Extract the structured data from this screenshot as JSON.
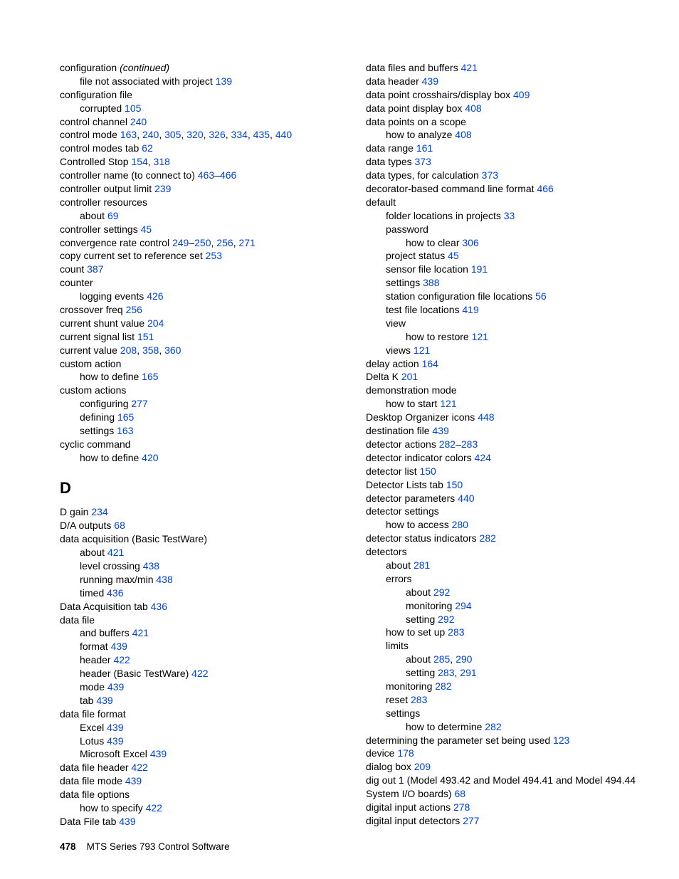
{
  "link_color": "#0042d8",
  "font_family": "Arial, Helvetica, sans-serif",
  "body_font_size_pt": 10,
  "heading_font_size_pt": 16,
  "footer": {
    "page_number": "478",
    "title": "MTS Series 793 Control Software"
  },
  "section_heading": {
    "letter": "D"
  },
  "col_left_a": [
    {
      "lvl": 0,
      "segs": [
        {
          "t": "configuration "
        },
        {
          "t": "(continued)",
          "italic": true
        }
      ]
    },
    {
      "lvl": 1,
      "segs": [
        {
          "t": "file not associated with project "
        },
        {
          "t": "139",
          "link": true
        }
      ]
    },
    {
      "lvl": 0,
      "segs": [
        {
          "t": "configuration file"
        }
      ]
    },
    {
      "lvl": 1,
      "segs": [
        {
          "t": "corrupted "
        },
        {
          "t": "105",
          "link": true
        }
      ]
    },
    {
      "lvl": 0,
      "segs": [
        {
          "t": "control channel "
        },
        {
          "t": "240",
          "link": true
        }
      ]
    },
    {
      "lvl": 0,
      "segs": [
        {
          "t": "control mode "
        },
        {
          "t": "163",
          "link": true
        },
        {
          "t": ", "
        },
        {
          "t": "240",
          "link": true
        },
        {
          "t": ", "
        },
        {
          "t": "305",
          "link": true
        },
        {
          "t": ", "
        },
        {
          "t": "320",
          "link": true
        },
        {
          "t": ", "
        },
        {
          "t": "326",
          "link": true
        },
        {
          "t": ", "
        },
        {
          "t": "334",
          "link": true
        },
        {
          "t": ", "
        },
        {
          "t": "435",
          "link": true
        },
        {
          "t": ", "
        },
        {
          "t": "440",
          "link": true
        }
      ]
    },
    {
      "lvl": 0,
      "segs": [
        {
          "t": "control modes tab "
        },
        {
          "t": "62",
          "link": true
        }
      ]
    },
    {
      "lvl": 0,
      "segs": [
        {
          "t": "Controlled Stop "
        },
        {
          "t": "154",
          "link": true
        },
        {
          "t": ", "
        },
        {
          "t": "318",
          "link": true
        }
      ]
    },
    {
      "lvl": 0,
      "segs": [
        {
          "t": "controller name (to connect to) "
        },
        {
          "t": "463",
          "link": true
        },
        {
          "t": "–"
        },
        {
          "t": "466",
          "link": true
        }
      ]
    },
    {
      "lvl": 0,
      "segs": [
        {
          "t": "controller output limit "
        },
        {
          "t": "239",
          "link": true
        }
      ]
    },
    {
      "lvl": 0,
      "segs": [
        {
          "t": "controller resources"
        }
      ]
    },
    {
      "lvl": 1,
      "segs": [
        {
          "t": "about "
        },
        {
          "t": "69",
          "link": true
        }
      ]
    },
    {
      "lvl": 0,
      "segs": [
        {
          "t": "controller settings "
        },
        {
          "t": "45",
          "link": true
        }
      ]
    },
    {
      "lvl": 0,
      "segs": [
        {
          "t": "convergence rate control "
        },
        {
          "t": "249",
          "link": true
        },
        {
          "t": "–"
        },
        {
          "t": "250",
          "link": true
        },
        {
          "t": ", "
        },
        {
          "t": "256",
          "link": true
        },
        {
          "t": ", "
        },
        {
          "t": "271",
          "link": true
        }
      ]
    },
    {
      "lvl": 0,
      "segs": [
        {
          "t": "copy current set to reference set "
        },
        {
          "t": "253",
          "link": true
        }
      ]
    },
    {
      "lvl": 0,
      "segs": [
        {
          "t": "count "
        },
        {
          "t": "387",
          "link": true
        }
      ]
    },
    {
      "lvl": 0,
      "segs": [
        {
          "t": "counter"
        }
      ]
    },
    {
      "lvl": 1,
      "segs": [
        {
          "t": "logging events "
        },
        {
          "t": "426",
          "link": true
        }
      ]
    },
    {
      "lvl": 0,
      "segs": [
        {
          "t": "crossover freq "
        },
        {
          "t": "256",
          "link": true
        }
      ]
    },
    {
      "lvl": 0,
      "segs": [
        {
          "t": "current shunt value "
        },
        {
          "t": "204",
          "link": true
        }
      ]
    },
    {
      "lvl": 0,
      "segs": [
        {
          "t": "current signal list "
        },
        {
          "t": "151",
          "link": true
        }
      ]
    },
    {
      "lvl": 0,
      "segs": [
        {
          "t": "current value "
        },
        {
          "t": "208",
          "link": true
        },
        {
          "t": ", "
        },
        {
          "t": "358",
          "link": true
        },
        {
          "t": ", "
        },
        {
          "t": "360",
          "link": true
        }
      ]
    },
    {
      "lvl": 0,
      "segs": [
        {
          "t": "custom action"
        }
      ]
    },
    {
      "lvl": 1,
      "segs": [
        {
          "t": "how to define "
        },
        {
          "t": "165",
          "link": true
        }
      ]
    },
    {
      "lvl": 0,
      "segs": [
        {
          "t": "custom actions"
        }
      ]
    },
    {
      "lvl": 1,
      "segs": [
        {
          "t": "configuring "
        },
        {
          "t": "277",
          "link": true
        }
      ]
    },
    {
      "lvl": 1,
      "segs": [
        {
          "t": "defining "
        },
        {
          "t": "165",
          "link": true
        }
      ]
    },
    {
      "lvl": 1,
      "segs": [
        {
          "t": "settings "
        },
        {
          "t": "163",
          "link": true
        }
      ]
    },
    {
      "lvl": 0,
      "segs": [
        {
          "t": "cyclic command"
        }
      ]
    },
    {
      "lvl": 1,
      "segs": [
        {
          "t": "how to define "
        },
        {
          "t": "420",
          "link": true
        }
      ]
    }
  ],
  "col_left_b": [
    {
      "lvl": 0,
      "segs": [
        {
          "t": "D gain "
        },
        {
          "t": "234",
          "link": true
        }
      ]
    },
    {
      "lvl": 0,
      "segs": [
        {
          "t": "D/A outputs "
        },
        {
          "t": "68",
          "link": true
        }
      ]
    },
    {
      "lvl": 0,
      "segs": [
        {
          "t": "data acquisition (Basic TestWare)"
        }
      ]
    },
    {
      "lvl": 1,
      "segs": [
        {
          "t": "about "
        },
        {
          "t": "421",
          "link": true
        }
      ]
    },
    {
      "lvl": 1,
      "segs": [
        {
          "t": "level crossing "
        },
        {
          "t": "438",
          "link": true
        }
      ]
    },
    {
      "lvl": 1,
      "segs": [
        {
          "t": "running max/min "
        },
        {
          "t": "438",
          "link": true
        }
      ]
    },
    {
      "lvl": 1,
      "segs": [
        {
          "t": "timed "
        },
        {
          "t": "436",
          "link": true
        }
      ]
    },
    {
      "lvl": 0,
      "segs": [
        {
          "t": "Data Acquisition tab "
        },
        {
          "t": "436",
          "link": true
        }
      ]
    },
    {
      "lvl": 0,
      "segs": [
        {
          "t": "data file"
        }
      ]
    },
    {
      "lvl": 1,
      "segs": [
        {
          "t": "and buffers "
        },
        {
          "t": "421",
          "link": true
        }
      ]
    },
    {
      "lvl": 1,
      "segs": [
        {
          "t": "format "
        },
        {
          "t": "439",
          "link": true
        }
      ]
    },
    {
      "lvl": 1,
      "segs": [
        {
          "t": "header "
        },
        {
          "t": "422",
          "link": true
        }
      ]
    },
    {
      "lvl": 1,
      "segs": [
        {
          "t": "header (Basic TestWare) "
        },
        {
          "t": "422",
          "link": true
        }
      ]
    },
    {
      "lvl": 1,
      "segs": [
        {
          "t": "mode "
        },
        {
          "t": "439",
          "link": true
        }
      ]
    },
    {
      "lvl": 1,
      "segs": [
        {
          "t": "tab "
        },
        {
          "t": "439",
          "link": true
        }
      ]
    },
    {
      "lvl": 0,
      "segs": [
        {
          "t": "data file format"
        }
      ]
    },
    {
      "lvl": 1,
      "segs": [
        {
          "t": "Excel "
        },
        {
          "t": "439",
          "link": true
        }
      ]
    },
    {
      "lvl": 1,
      "segs": [
        {
          "t": "Lotus "
        },
        {
          "t": "439",
          "link": true
        }
      ]
    },
    {
      "lvl": 1,
      "segs": [
        {
          "t": "Microsoft Excel "
        },
        {
          "t": "439",
          "link": true
        }
      ]
    },
    {
      "lvl": 0,
      "segs": [
        {
          "t": "data file header "
        },
        {
          "t": "422",
          "link": true
        }
      ]
    },
    {
      "lvl": 0,
      "segs": [
        {
          "t": "data file mode "
        },
        {
          "t": "439",
          "link": true
        }
      ]
    },
    {
      "lvl": 0,
      "segs": [
        {
          "t": "data file options"
        }
      ]
    },
    {
      "lvl": 1,
      "segs": [
        {
          "t": "how to specify "
        },
        {
          "t": "422",
          "link": true
        }
      ]
    },
    {
      "lvl": 0,
      "segs": [
        {
          "t": "Data File tab "
        },
        {
          "t": "439",
          "link": true
        }
      ]
    }
  ],
  "col_right": [
    {
      "lvl": 0,
      "segs": [
        {
          "t": "data files and buffers "
        },
        {
          "t": "421",
          "link": true
        }
      ]
    },
    {
      "lvl": 0,
      "segs": [
        {
          "t": "data header "
        },
        {
          "t": "439",
          "link": true
        }
      ]
    },
    {
      "lvl": 0,
      "segs": [
        {
          "t": "data point crosshairs/display box "
        },
        {
          "t": "409",
          "link": true
        }
      ]
    },
    {
      "lvl": 0,
      "segs": [
        {
          "t": "data point display box "
        },
        {
          "t": "408",
          "link": true
        }
      ]
    },
    {
      "lvl": 0,
      "segs": [
        {
          "t": "data points on a scope"
        }
      ]
    },
    {
      "lvl": 1,
      "segs": [
        {
          "t": "how to analyze "
        },
        {
          "t": "408",
          "link": true
        }
      ]
    },
    {
      "lvl": 0,
      "segs": [
        {
          "t": "data range "
        },
        {
          "t": "161",
          "link": true
        }
      ]
    },
    {
      "lvl": 0,
      "segs": [
        {
          "t": "data types "
        },
        {
          "t": "373",
          "link": true
        }
      ]
    },
    {
      "lvl": 0,
      "segs": [
        {
          "t": "data types, for calculation "
        },
        {
          "t": "373",
          "link": true
        }
      ]
    },
    {
      "lvl": 0,
      "segs": [
        {
          "t": "decorator-based command line format "
        },
        {
          "t": "466",
          "link": true
        }
      ]
    },
    {
      "lvl": 0,
      "segs": [
        {
          "t": "default"
        }
      ]
    },
    {
      "lvl": 1,
      "segs": [
        {
          "t": "folder locations in projects "
        },
        {
          "t": "33",
          "link": true
        }
      ]
    },
    {
      "lvl": 1,
      "segs": [
        {
          "t": "password"
        }
      ]
    },
    {
      "lvl": 2,
      "segs": [
        {
          "t": "how to clear "
        },
        {
          "t": "306",
          "link": true
        }
      ]
    },
    {
      "lvl": 1,
      "segs": [
        {
          "t": "project status "
        },
        {
          "t": "45",
          "link": true
        }
      ]
    },
    {
      "lvl": 1,
      "segs": [
        {
          "t": "sensor file location "
        },
        {
          "t": "191",
          "link": true
        }
      ]
    },
    {
      "lvl": 1,
      "segs": [
        {
          "t": "settings "
        },
        {
          "t": "388",
          "link": true
        }
      ]
    },
    {
      "lvl": 1,
      "segs": [
        {
          "t": "station configuration file locations "
        },
        {
          "t": "56",
          "link": true
        }
      ]
    },
    {
      "lvl": 1,
      "segs": [
        {
          "t": "test file locations "
        },
        {
          "t": "419",
          "link": true
        }
      ]
    },
    {
      "lvl": 1,
      "segs": [
        {
          "t": "view"
        }
      ]
    },
    {
      "lvl": 2,
      "segs": [
        {
          "t": "how to restore "
        },
        {
          "t": "121",
          "link": true
        }
      ]
    },
    {
      "lvl": 1,
      "segs": [
        {
          "t": "views "
        },
        {
          "t": "121",
          "link": true
        }
      ]
    },
    {
      "lvl": 0,
      "segs": [
        {
          "t": "delay action "
        },
        {
          "t": "164",
          "link": true
        }
      ]
    },
    {
      "lvl": 0,
      "segs": [
        {
          "t": "Delta K "
        },
        {
          "t": "201",
          "link": true
        }
      ]
    },
    {
      "lvl": 0,
      "segs": [
        {
          "t": "demonstration mode"
        }
      ]
    },
    {
      "lvl": 1,
      "segs": [
        {
          "t": "how to start "
        },
        {
          "t": "121",
          "link": true
        }
      ]
    },
    {
      "lvl": 0,
      "segs": [
        {
          "t": "Desktop Organizer icons "
        },
        {
          "t": "448",
          "link": true
        }
      ]
    },
    {
      "lvl": 0,
      "segs": [
        {
          "t": "destination file "
        },
        {
          "t": "439",
          "link": true
        }
      ]
    },
    {
      "lvl": 0,
      "segs": [
        {
          "t": "detector actions "
        },
        {
          "t": "282",
          "link": true
        },
        {
          "t": "–"
        },
        {
          "t": "283",
          "link": true
        }
      ]
    },
    {
      "lvl": 0,
      "segs": [
        {
          "t": "detector indicator colors "
        },
        {
          "t": "424",
          "link": true
        }
      ]
    },
    {
      "lvl": 0,
      "segs": [
        {
          "t": "detector list "
        },
        {
          "t": "150",
          "link": true
        }
      ]
    },
    {
      "lvl": 0,
      "segs": [
        {
          "t": "Detector Lists tab "
        },
        {
          "t": "150",
          "link": true
        }
      ]
    },
    {
      "lvl": 0,
      "segs": [
        {
          "t": "detector parameters "
        },
        {
          "t": "440",
          "link": true
        }
      ]
    },
    {
      "lvl": 0,
      "segs": [
        {
          "t": "detector settings"
        }
      ]
    },
    {
      "lvl": 1,
      "segs": [
        {
          "t": "how to access "
        },
        {
          "t": "280",
          "link": true
        }
      ]
    },
    {
      "lvl": 0,
      "segs": [
        {
          "t": "detector status indicators "
        },
        {
          "t": "282",
          "link": true
        }
      ]
    },
    {
      "lvl": 0,
      "segs": [
        {
          "t": "detectors"
        }
      ]
    },
    {
      "lvl": 1,
      "segs": [
        {
          "t": "about "
        },
        {
          "t": "281",
          "link": true
        }
      ]
    },
    {
      "lvl": 1,
      "segs": [
        {
          "t": "errors"
        }
      ]
    },
    {
      "lvl": 2,
      "segs": [
        {
          "t": "about "
        },
        {
          "t": "292",
          "link": true
        }
      ]
    },
    {
      "lvl": 2,
      "segs": [
        {
          "t": "monitoring "
        },
        {
          "t": "294",
          "link": true
        }
      ]
    },
    {
      "lvl": 2,
      "segs": [
        {
          "t": "setting "
        },
        {
          "t": "292",
          "link": true
        }
      ]
    },
    {
      "lvl": 1,
      "segs": [
        {
          "t": "how to set up "
        },
        {
          "t": "283",
          "link": true
        }
      ]
    },
    {
      "lvl": 1,
      "segs": [
        {
          "t": "limits"
        }
      ]
    },
    {
      "lvl": 2,
      "segs": [
        {
          "t": "about "
        },
        {
          "t": "285",
          "link": true
        },
        {
          "t": ", "
        },
        {
          "t": "290",
          "link": true
        }
      ]
    },
    {
      "lvl": 2,
      "segs": [
        {
          "t": "setting "
        },
        {
          "t": "283",
          "link": true
        },
        {
          "t": ", "
        },
        {
          "t": "291",
          "link": true
        }
      ]
    },
    {
      "lvl": 1,
      "segs": [
        {
          "t": "monitoring "
        },
        {
          "t": "282",
          "link": true
        }
      ]
    },
    {
      "lvl": 1,
      "segs": [
        {
          "t": "reset "
        },
        {
          "t": "283",
          "link": true
        }
      ]
    },
    {
      "lvl": 1,
      "segs": [
        {
          "t": "settings"
        }
      ]
    },
    {
      "lvl": 2,
      "segs": [
        {
          "t": "how to determine "
        },
        {
          "t": "282",
          "link": true
        }
      ]
    },
    {
      "lvl": 0,
      "segs": [
        {
          "t": "determining the parameter set being used "
        },
        {
          "t": "123",
          "link": true
        }
      ]
    },
    {
      "lvl": 0,
      "segs": [
        {
          "t": "device "
        },
        {
          "t": "178",
          "link": true
        }
      ]
    },
    {
      "lvl": 0,
      "segs": [
        {
          "t": "dialog box "
        },
        {
          "t": "209",
          "link": true
        }
      ]
    },
    {
      "lvl": 0,
      "segs": [
        {
          "t": "dig out 1 (Model 493.42 and Model 494.41 and Model 494.44 System I/O boards) "
        },
        {
          "t": "68",
          "link": true
        }
      ]
    },
    {
      "lvl": 0,
      "segs": [
        {
          "t": "digital input actions "
        },
        {
          "t": "278",
          "link": true
        }
      ]
    },
    {
      "lvl": 0,
      "segs": [
        {
          "t": "digital input detectors "
        },
        {
          "t": "277",
          "link": true
        }
      ]
    }
  ]
}
